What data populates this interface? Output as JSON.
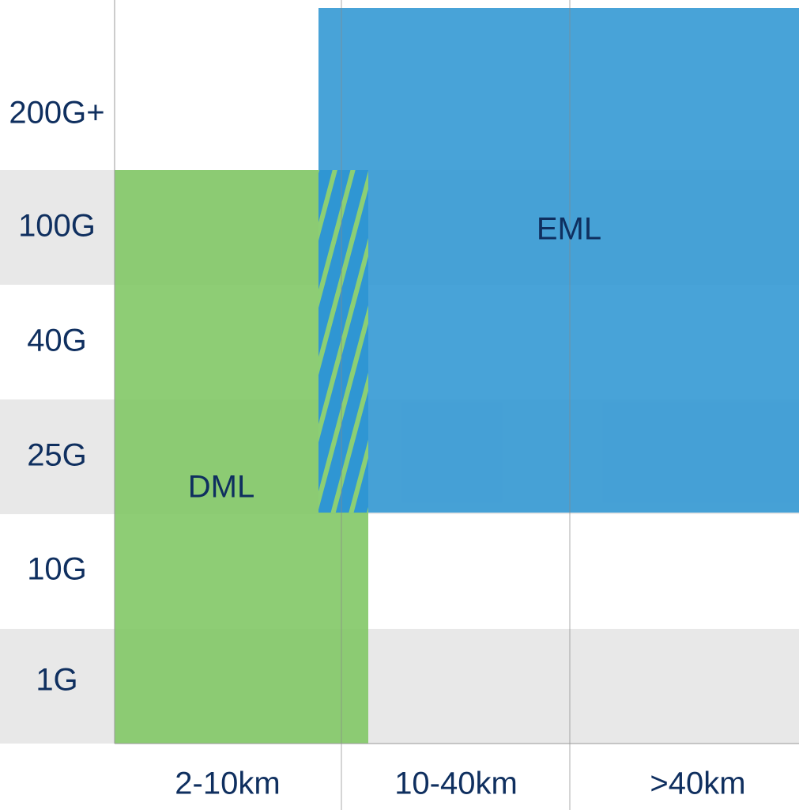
{
  "rows": [
    "200G+",
    "100G",
    "40G",
    "25G",
    "10G",
    "1G"
  ],
  "columns": [
    "2-10km",
    "10-40km",
    ">40km"
  ],
  "regions": {
    "eml": "EML",
    "dml": "DML"
  }
}
